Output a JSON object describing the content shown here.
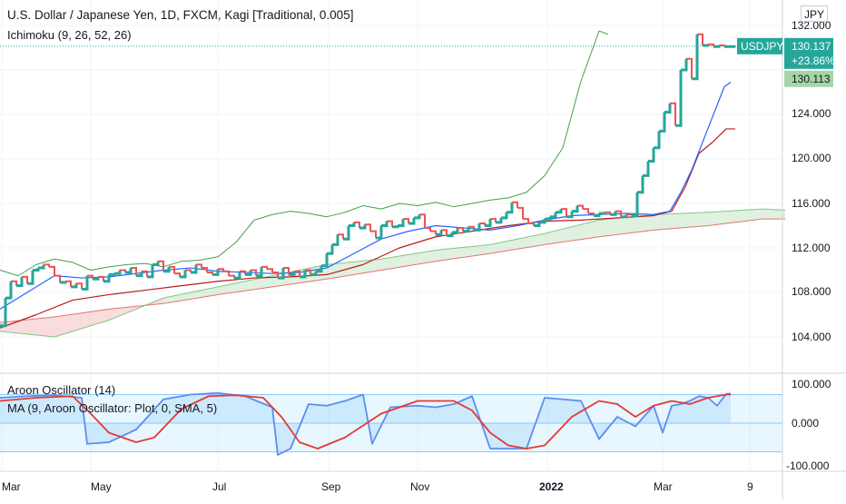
{
  "legend": {
    "title": "U.S. Dollar / Japanese Yen, 1D, FXCM, Kagi [Traditional, 0.005]",
    "ichimoku": "Ichimoku (9, 26, 52, 26)",
    "aroon": "Aroon Oscillator (14)",
    "aroon_ma": "MA (9, Aroon Oscillator: Plot, 0, SMA, 5)"
  },
  "price_axis": {
    "unit_label": "JPY",
    "ticks": [
      "132.000",
      "124.000",
      "120.000",
      "116.000",
      "112.000",
      "108.000",
      "104.000"
    ],
    "symbol_badge": "USDJPY",
    "last_price": "130.137",
    "change_pct": "+23.86%",
    "secondary_price": "130.113"
  },
  "aroon_axis": {
    "ticks": [
      "100.000",
      "0.000",
      "-100.000"
    ]
  },
  "time_axis": {
    "ticks": [
      "Mar",
      "May",
      "Jul",
      "Sep",
      "Nov",
      "2022",
      "Mar",
      "9"
    ]
  },
  "colors": {
    "kagi_up": "#26a69a",
    "kagi_down": "#ef5350",
    "tenkan": "#2962ff",
    "kijun": "#b71c1c",
    "chikou": "#43a047",
    "cloud_green": "#a5d6a7",
    "cloud_red": "#ef9a9a",
    "aroon": "#5b8def",
    "aroon_ma": "#e53935",
    "aroon_band": "#b3e5fc"
  },
  "chart_data": [
    {
      "type": "line",
      "title": "U.S. Dollar / Japanese Yen, 1D, FXCM, Kagi [Traditional, 0.005]",
      "ylim": [
        102.5,
        133.5
      ],
      "x_ticks": [
        "Mar",
        "May",
        "Jul",
        "Sep",
        "Nov",
        "2022",
        "Mar",
        "9"
      ],
      "series": [
        {
          "name": "USDJPY",
          "x": [
            0,
            6,
            12,
            18,
            24,
            30,
            36,
            42,
            48,
            54,
            60,
            66,
            72,
            78,
            84,
            90,
            96,
            102,
            108,
            114,
            120,
            126,
            132,
            138,
            144,
            150,
            156,
            162,
            168,
            174,
            180,
            186,
            192,
            198,
            204,
            210,
            216,
            222,
            228,
            234,
            240,
            246,
            252,
            258,
            264,
            270,
            276,
            282,
            288,
            294,
            300,
            306,
            312,
            318,
            324,
            330,
            336,
            342,
            348,
            354,
            360,
            366,
            372,
            378,
            384,
            390,
            396,
            402,
            408,
            414,
            420,
            426,
            432,
            438,
            444,
            450,
            456,
            462,
            468,
            474,
            480,
            486,
            492,
            498,
            504,
            510,
            516,
            522,
            528,
            534,
            540,
            546,
            552,
            558,
            564,
            570,
            576,
            582,
            588,
            594,
            600,
            606,
            612,
            618,
            624,
            630,
            636,
            642,
            648,
            654,
            660,
            666,
            672,
            678,
            684,
            690,
            696,
            702,
            708,
            714,
            720,
            726,
            732,
            738,
            744,
            750,
            756,
            762,
            768,
            774,
            780,
            786,
            792,
            798,
            804,
            810
          ],
          "values": [
            105.0,
            107.5,
            109.0,
            108.6,
            109.4,
            108.8,
            110.0,
            110.2,
            110.5,
            110.3,
            109.5,
            108.9,
            109.0,
            108.5,
            108.8,
            108.3,
            109.5,
            109.2,
            109.4,
            109.0,
            109.6,
            109.7,
            110.0,
            109.8,
            110.2,
            109.5,
            109.9,
            109.4,
            110.5,
            110.8,
            109.9,
            110.3,
            109.7,
            109.4,
            110.0,
            109.8,
            110.5,
            110.2,
            109.8,
            109.6,
            110.1,
            109.9,
            109.5,
            109.3,
            109.9,
            109.6,
            110.0,
            109.5,
            110.3,
            110.1,
            109.8,
            109.3,
            110.2,
            109.6,
            109.9,
            109.4,
            110.0,
            109.6,
            109.9,
            110.4,
            111.5,
            112.3,
            113.2,
            112.8,
            114.0,
            114.3,
            113.8,
            114.1,
            113.5,
            112.9,
            114.0,
            114.4,
            113.9,
            114.0,
            114.6,
            114.2,
            114.7,
            115.0,
            113.8,
            113.5,
            113.2,
            113.6,
            113.1,
            113.4,
            113.8,
            113.5,
            113.9,
            113.6,
            114.2,
            114.0,
            114.6,
            114.3,
            114.7,
            115.2,
            116.1,
            115.6,
            114.6,
            114.2,
            114.0,
            114.3,
            114.6,
            114.8,
            115.2,
            115.5,
            114.8,
            115.3,
            115.8,
            115.5,
            115.1,
            114.9,
            115.1,
            115.2,
            115.0,
            115.3,
            114.8,
            115.0,
            114.9,
            117.0,
            118.5,
            119.8,
            121.0,
            122.5,
            124.2,
            125.0,
            123.0,
            128.0,
            129.0,
            127.2,
            131.2,
            130.2,
            130.3,
            130.1,
            130.2,
            130.1,
            130.1,
            130.1
          ]
        },
        {
          "name": "Tenkan-sen",
          "x": [
            0,
            30,
            60,
            90,
            120,
            150,
            180,
            210,
            240,
            270,
            300,
            330,
            360,
            390,
            420,
            450,
            480,
            510,
            540,
            570,
            600,
            630,
            660,
            690,
            720,
            738,
            750,
            762,
            774,
            786,
            798,
            805
          ],
          "values": [
            106.5,
            108.0,
            109.5,
            109.3,
            109.4,
            109.7,
            110.0,
            110.2,
            109.9,
            109.8,
            109.7,
            109.8,
            110.2,
            111.5,
            112.8,
            113.5,
            114.0,
            113.8,
            113.6,
            114.0,
            114.5,
            114.9,
            115.0,
            115.1,
            115.0,
            115.3,
            117.0,
            119.0,
            121.5,
            124.0,
            126.5,
            126.9
          ]
        },
        {
          "name": "Kijun-sen",
          "x": [
            0,
            40,
            80,
            120,
            160,
            200,
            240,
            280,
            320,
            360,
            400,
            440,
            480,
            520,
            560,
            600,
            640,
            680,
            720,
            740,
            755,
            770,
            785,
            800,
            810
          ],
          "values": [
            104.8,
            106.0,
            107.3,
            107.8,
            108.2,
            108.6,
            109.0,
            109.3,
            109.4,
            109.6,
            110.5,
            112.0,
            113.0,
            113.5,
            114.0,
            114.4,
            114.5,
            114.7,
            114.9,
            115.3,
            117.5,
            120.5,
            121.5,
            122.7,
            122.7
          ]
        },
        {
          "name": "Chikou Span",
          "x": [
            0,
            20,
            40,
            60,
            80,
            100,
            120,
            140,
            160,
            180,
            200,
            220,
            240,
            260,
            280,
            300,
            320,
            340,
            360,
            380,
            400,
            420,
            440,
            460,
            480,
            500,
            520,
            540,
            560,
            580,
            600,
            620,
            640,
            660,
            670
          ],
          "values": [
            110.0,
            109.5,
            110.5,
            111.0,
            110.7,
            110.0,
            110.3,
            110.5,
            110.6,
            110.3,
            110.8,
            110.9,
            111.2,
            112.5,
            114.5,
            115.0,
            115.3,
            115.1,
            114.8,
            115.2,
            115.8,
            115.5,
            116.0,
            115.8,
            116.1,
            115.7,
            116.0,
            116.3,
            116.5,
            117.0,
            118.5,
            121.0,
            127.0,
            131.5,
            131.2
          ]
        },
        {
          "name": "Senkou Span A",
          "x": [
            0,
            60,
            120,
            180,
            240,
            300,
            360,
            420,
            480,
            540,
            600,
            660,
            720,
            780,
            840,
            865
          ],
          "values": [
            104.5,
            104.0,
            105.5,
            107.5,
            108.5,
            109.5,
            110.5,
            111.0,
            111.8,
            112.3,
            113.3,
            114.5,
            115.0,
            115.2,
            115.5,
            115.4
          ]
        },
        {
          "name": "Senkou Span B",
          "x": [
            0,
            60,
            120,
            180,
            240,
            300,
            360,
            420,
            480,
            540,
            600,
            660,
            720,
            780,
            840,
            865
          ],
          "values": [
            105.3,
            105.8,
            106.5,
            107.0,
            107.8,
            108.5,
            109.2,
            110.0,
            110.8,
            111.5,
            112.3,
            113.0,
            113.6,
            114.0,
            114.6,
            114.6
          ]
        }
      ]
    },
    {
      "type": "line",
      "title": "Aroon Oscillator (14)",
      "ylim": [
        -120,
        120
      ],
      "series": [
        {
          "name": "Aroon Oscillator (14)",
          "x": [
            0,
            30,
            60,
            90,
            96,
            120,
            150,
            180,
            210,
            240,
            270,
            300,
            306,
            320,
            340,
            360,
            380,
            400,
            410,
            430,
            460,
            480,
            500,
            520,
            540,
            560,
            580,
            600,
            620,
            640,
            660,
            680,
            700,
            720,
            730,
            740,
            750,
            760,
            770,
            780,
            790,
            800,
            805
          ],
          "values": [
            80,
            85,
            88,
            80,
            -65,
            -60,
            -20,
            75,
            90,
            95,
            85,
            50,
            -100,
            -80,
            60,
            55,
            70,
            90,
            -65,
            50,
            55,
            50,
            60,
            85,
            -80,
            -80,
            -80,
            80,
            75,
            70,
            -50,
            20,
            -10,
            55,
            -30,
            55,
            60,
            70,
            85,
            80,
            55,
            92,
            93
          ]
        },
        {
          "name": "MA (9, Aroon Oscillator: Plot, 0, SMA, 5)",
          "x": [
            0,
            40,
            80,
            100,
            120,
            150,
            170,
            200,
            230,
            260,
            290,
            310,
            330,
            350,
            380,
            420,
            460,
            500,
            520,
            540,
            560,
            580,
            600,
            630,
            660,
            680,
            700,
            720,
            740,
            760,
            780,
            800,
            805
          ],
          "values": [
            70,
            80,
            85,
            30,
            -30,
            -60,
            -45,
            45,
            85,
            88,
            80,
            20,
            -60,
            -80,
            -45,
            30,
            70,
            70,
            40,
            -30,
            -70,
            -80,
            -70,
            20,
            70,
            60,
            20,
            55,
            70,
            60,
            80,
            90,
            90
          ]
        }
      ]
    }
  ]
}
